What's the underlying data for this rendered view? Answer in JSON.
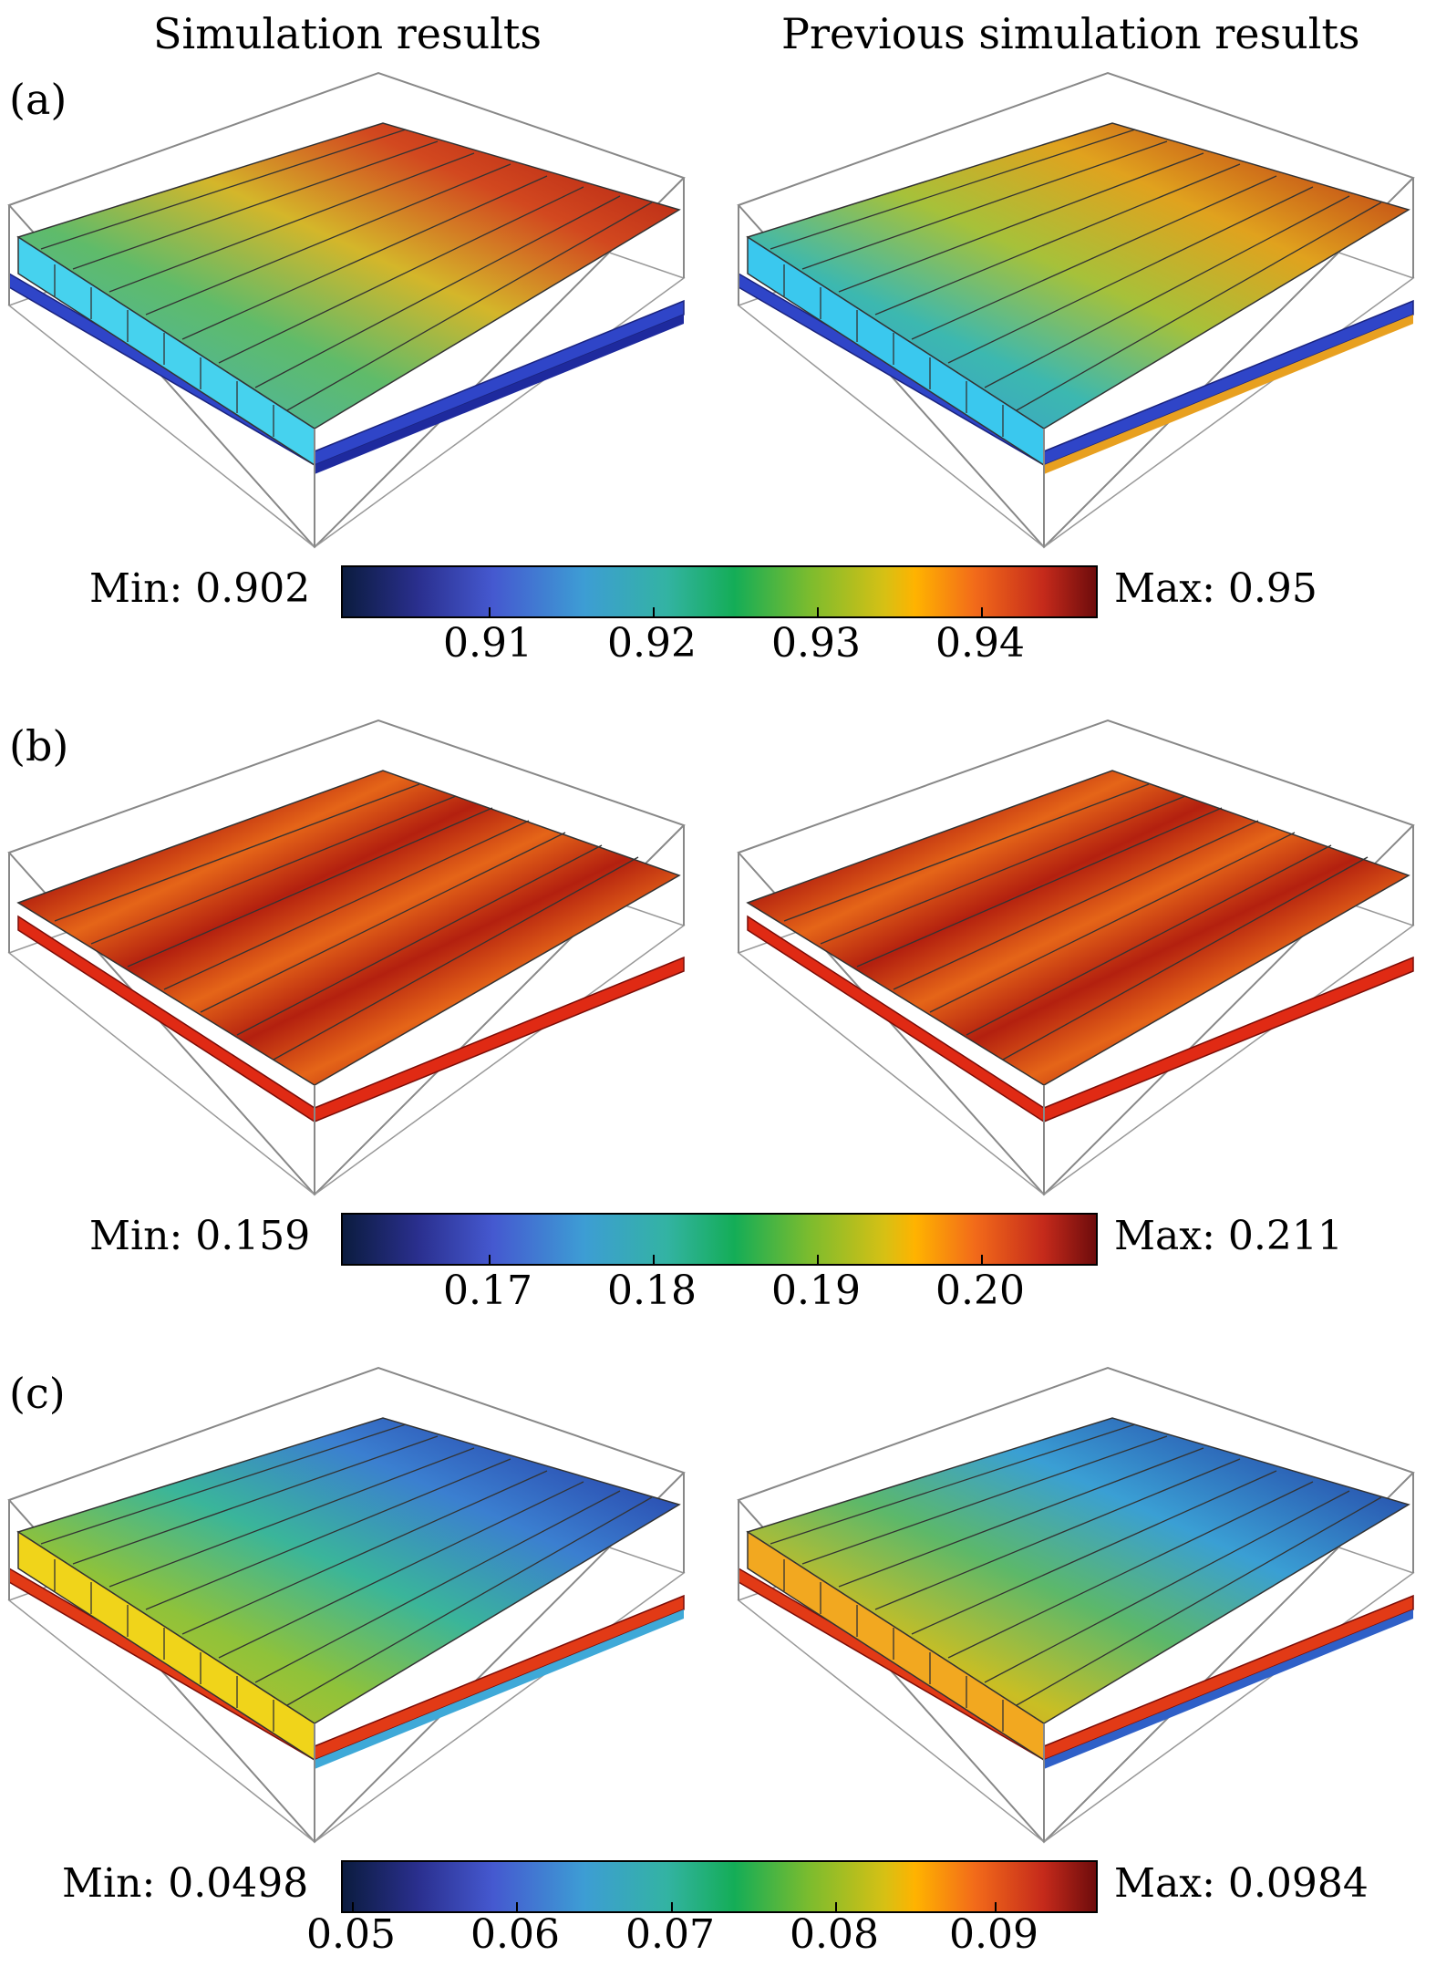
{
  "columns": {
    "left": "Simulation results",
    "right": "Previous simulation results"
  },
  "panels": [
    {
      "label": "(a)",
      "min": "Min: 0.902",
      "max": "Max: 0.95",
      "ticks": [
        "0.91",
        "0.92",
        "0.93",
        "0.94"
      ]
    },
    {
      "label": "(b)",
      "min": "Min: 0.159",
      "max": "Max: 0.211",
      "ticks": [
        "0.17",
        "0.18",
        "0.19",
        "0.20"
      ]
    },
    {
      "label": "(c)",
      "min": "Min: 0.0498",
      "max": "Max: 0.0984",
      "ticks": [
        "0.05",
        "0.06",
        "0.07",
        "0.08",
        "0.09"
      ]
    }
  ],
  "colors": {
    "low": "#0b1c3f",
    "mid": "#14ad57",
    "high": "#6e0c0c"
  }
}
